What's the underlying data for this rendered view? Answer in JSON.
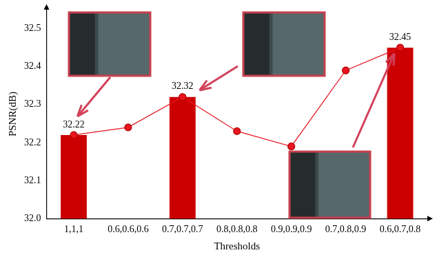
{
  "chart_data": {
    "type": "bar",
    "x_label": "Thresholds",
    "y_label": "PSNR(dB)",
    "categories": [
      "1,1,1",
      "0.6,0.6,0.6",
      "0.7,0.7,0.7",
      "0.8,0.8,0.8",
      "0.9,0.9,0.9",
      "0.7,0.8,0.9",
      "0.6,0.7,0.8"
    ],
    "series": [
      {
        "type": "bar",
        "color": "#cc0000",
        "data_labels": true,
        "values": [
          32.22,
          null,
          32.32,
          null,
          null,
          null,
          32.45
        ]
      },
      {
        "type": "line",
        "color": "#e8141e",
        "marker": "circle",
        "line_style": "solid",
        "values": [
          32.22,
          32.24,
          32.32,
          32.23,
          32.19,
          32.39,
          32.45
        ]
      }
    ],
    "ylim": [
      32.0,
      32.55
    ],
    "yticks": [
      {
        "value": 32.0,
        "label": "32.0"
      },
      32.1,
      32.2,
      32.3,
      32.4,
      32.5
    ],
    "grid": false
  }
}
